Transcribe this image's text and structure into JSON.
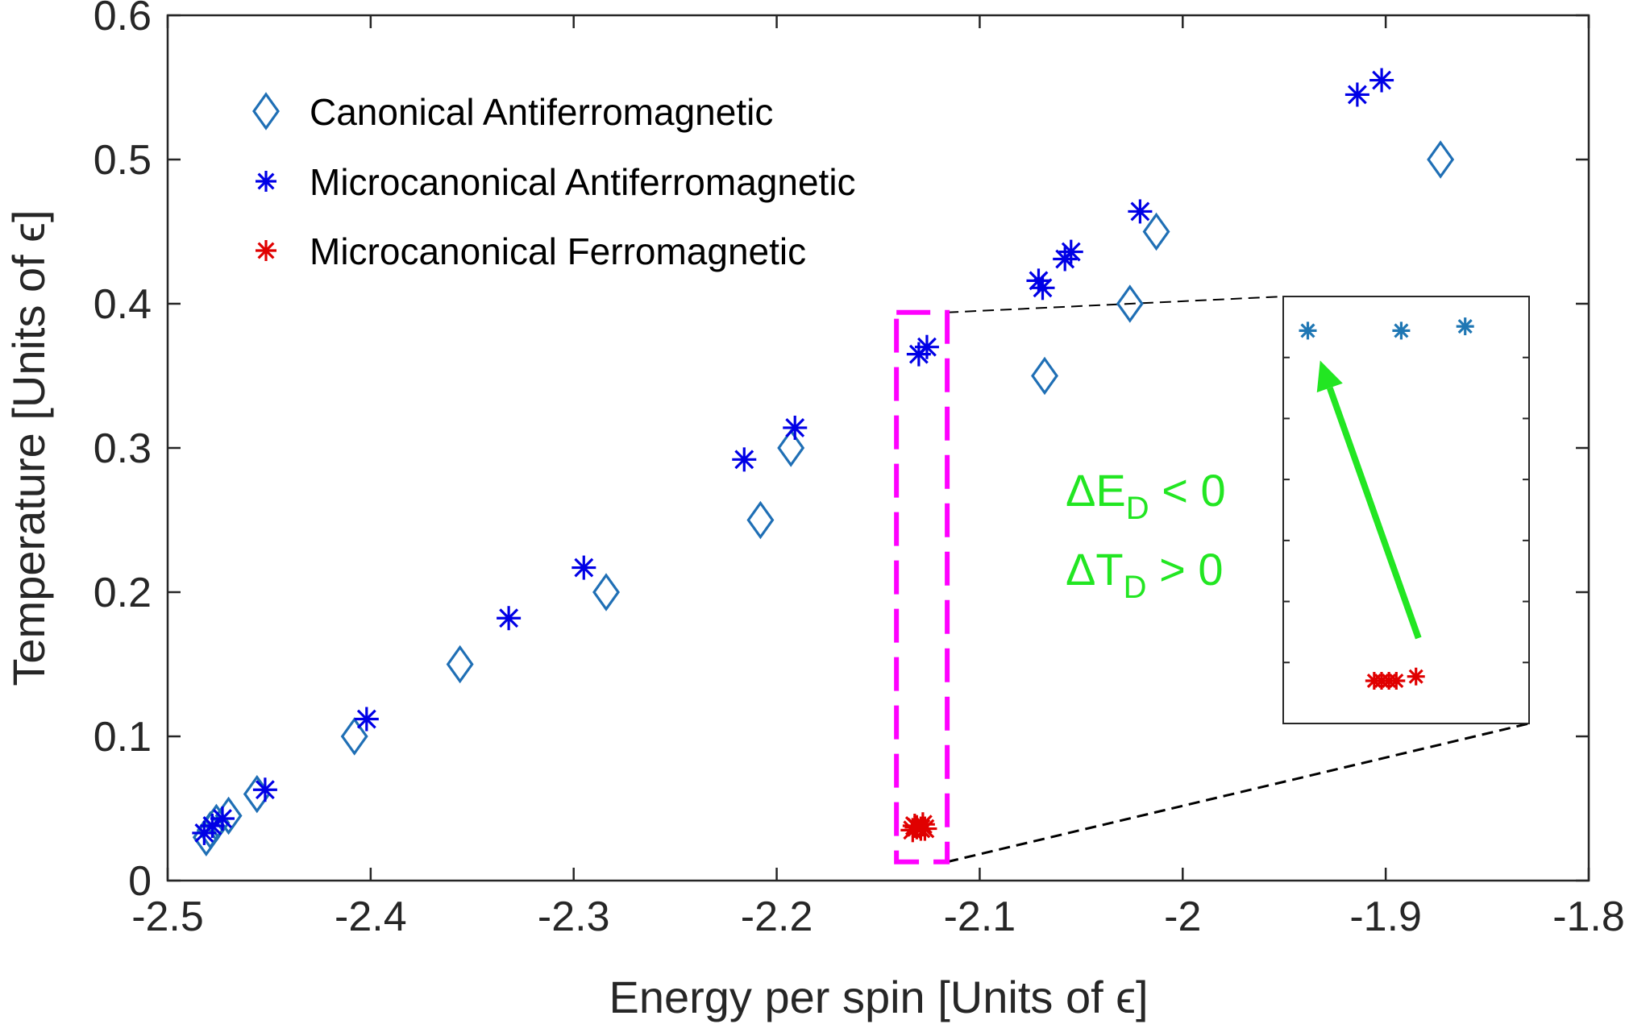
{
  "chart_data": {
    "type": "scatter",
    "title": "",
    "xlabel": "Energy per spin [Units of  ϵ]",
    "ylabel": "Temperature  [Units of  ϵ]",
    "xlim": [
      -2.5,
      -1.8
    ],
    "ylim": [
      0,
      0.6
    ],
    "xticks": [
      "-2.5",
      "-2.4",
      "-2.3",
      "-2.2",
      "-2.1",
      "-2",
      "-1.9",
      "-1.8"
    ],
    "yticks": [
      "0",
      "0.1",
      "0.2",
      "0.3",
      "0.4",
      "0.5",
      "0.6"
    ],
    "grid": false,
    "legend_position": "top-left",
    "series": [
      {
        "name": "Canonical Antiferromagnetic",
        "marker": "diamond",
        "color": "#1f6fb5",
        "points": [
          [
            -2.481,
            0.03
          ],
          [
            -2.479,
            0.035
          ],
          [
            -2.476,
            0.04
          ],
          [
            -2.47,
            0.045
          ],
          [
            -2.456,
            0.06
          ],
          [
            -2.408,
            0.1
          ],
          [
            -2.356,
            0.15
          ],
          [
            -2.284,
            0.2
          ],
          [
            -2.208,
            0.25
          ],
          [
            -2.193,
            0.3
          ],
          [
            -2.068,
            0.35
          ],
          [
            -2.026,
            0.4
          ],
          [
            -2.013,
            0.45
          ],
          [
            -1.873,
            0.5
          ]
        ]
      },
      {
        "name": "Microcanonical Antiferromagnetic",
        "marker": "asterisk",
        "color": "#0000e6",
        "points": [
          [
            -2.482,
            0.033
          ],
          [
            -2.478,
            0.038
          ],
          [
            -2.473,
            0.043
          ],
          [
            -2.452,
            0.063
          ],
          [
            -2.402,
            0.112
          ],
          [
            -2.332,
            0.182
          ],
          [
            -2.295,
            0.217
          ],
          [
            -2.216,
            0.292
          ],
          [
            -2.191,
            0.314
          ],
          [
            -2.13,
            0.365
          ],
          [
            -2.126,
            0.37
          ],
          [
            -2.071,
            0.416
          ],
          [
            -2.069,
            0.411
          ],
          [
            -2.058,
            0.431
          ],
          [
            -2.055,
            0.436
          ],
          [
            -2.021,
            0.464
          ],
          [
            -1.914,
            0.545
          ],
          [
            -1.902,
            0.555
          ]
        ]
      },
      {
        "name": "Microcanonical Ferromagnetic",
        "marker": "asterisk",
        "color": "#e00000",
        "points": [
          [
            -2.133,
            0.035
          ],
          [
            -2.131,
            0.037
          ],
          [
            -2.129,
            0.036
          ],
          [
            -2.128,
            0.039
          ],
          [
            -2.132,
            0.038
          ],
          [
            -2.127,
            0.036
          ]
        ]
      }
    ],
    "annotations": [
      {
        "text": "ΔE",
        "sub": "D",
        "rest": " < 0",
        "color": "#22e622"
      },
      {
        "text": "ΔT",
        "sub": "D",
        "rest": " > 0",
        "color": "#22e622"
      }
    ],
    "highlight_box": {
      "color": "#ff00ff",
      "style": "dashed",
      "x_range": [
        -2.141,
        -2.116
      ],
      "y_range": [
        0.013,
        0.394
      ]
    },
    "inset": {
      "description_points": {
        "blue": [
          [
            0.1,
            0.92
          ],
          [
            0.48,
            0.92
          ],
          [
            0.74,
            0.93
          ]
        ],
        "red": [
          [
            0.37,
            0.1
          ],
          [
            0.4,
            0.1
          ],
          [
            0.43,
            0.1
          ],
          [
            0.46,
            0.1
          ],
          [
            0.54,
            0.11
          ]
        ]
      },
      "arrow": {
        "from": [
          0.55,
          0.2
        ],
        "to": [
          0.15,
          0.85
        ],
        "color": "#22e622"
      },
      "blue_color": "#1f77b4",
      "red_color": "#e00000"
    }
  }
}
